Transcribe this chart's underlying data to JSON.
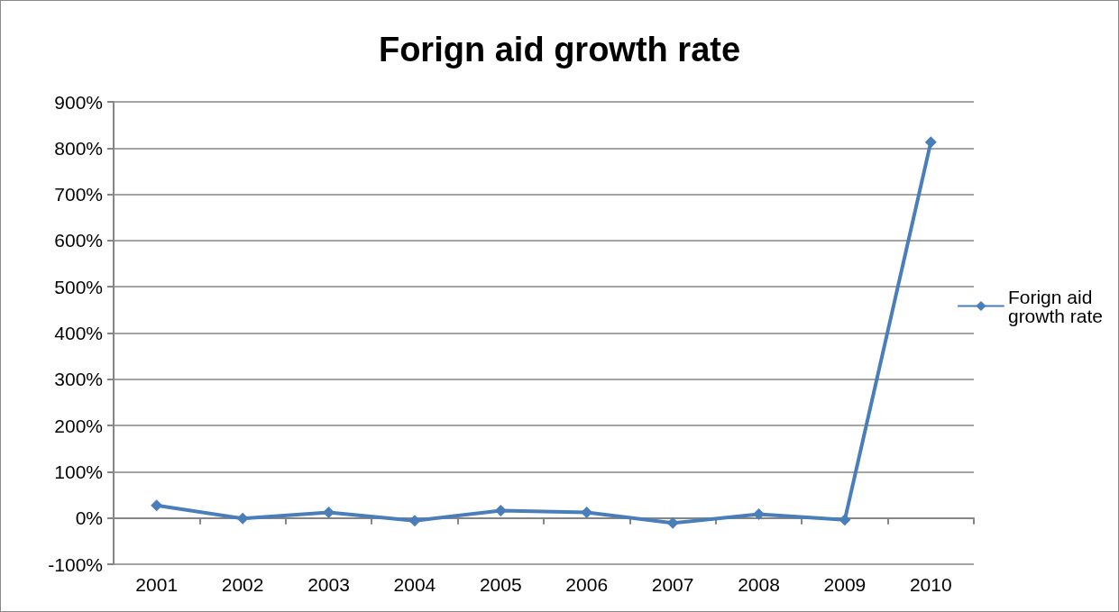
{
  "chart_data": {
    "type": "line",
    "title": "Forign aid growth rate",
    "categories": [
      "2001",
      "2002",
      "2003",
      "2004",
      "2005",
      "2006",
      "2007",
      "2008",
      "2009",
      "2010"
    ],
    "series": [
      {
        "name": "Forign aid growth rate",
        "color": "#4a7ebb",
        "values": [
          27,
          -1,
          12,
          -6,
          16,
          12,
          -11,
          8,
          -4,
          813
        ]
      }
    ],
    "ylim": [
      -100,
      900
    ],
    "yticks": [
      {
        "value": -100,
        "label": "-100%"
      },
      {
        "value": 0,
        "label": "0%"
      },
      {
        "value": 100,
        "label": "100%"
      },
      {
        "value": 200,
        "label": "200%"
      },
      {
        "value": 300,
        "label": "300%"
      },
      {
        "value": 400,
        "label": "400%"
      },
      {
        "value": 500,
        "label": "500%"
      },
      {
        "value": 600,
        "label": "600%"
      },
      {
        "value": 700,
        "label": "700%"
      },
      {
        "value": 800,
        "label": "800%"
      },
      {
        "value": 900,
        "label": "900%"
      }
    ],
    "grid": "y",
    "legend": "right",
    "marker": "diamond",
    "line_style": "solid"
  }
}
